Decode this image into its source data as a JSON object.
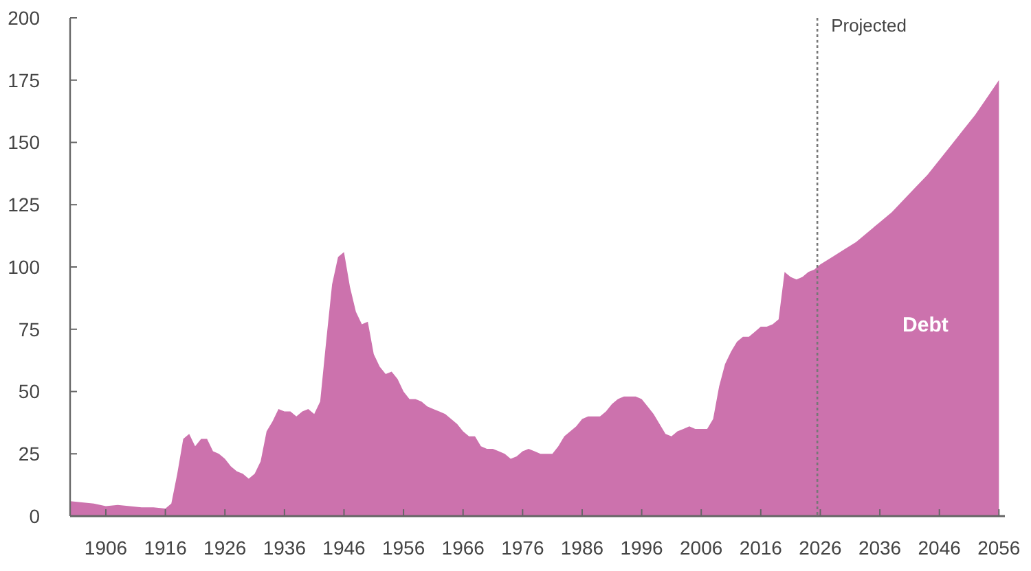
{
  "chart_data": {
    "type": "area",
    "xlim": [
      1900,
      2057
    ],
    "ylim": [
      0,
      200
    ],
    "xticks": [
      1906,
      1916,
      1926,
      1936,
      1946,
      1956,
      1966,
      1976,
      1986,
      1996,
      2006,
      2016,
      2026,
      2036,
      2046,
      2056
    ],
    "yticks": [
      0,
      25,
      50,
      75,
      100,
      125,
      150,
      175,
      200
    ],
    "grid": false,
    "ref_lines": [
      {
        "axis": "x",
        "value": 2025.5,
        "label": "Projected",
        "color": "#777777",
        "line_style": "dotted"
      }
    ],
    "series": [
      {
        "name": "Debt",
        "color": "#cc72ad",
        "x": [
          1900,
          1902,
          1904,
          1906,
          1908,
          1910,
          1912,
          1914,
          1916,
          1917,
          1918,
          1919,
          1920,
          1921,
          1922,
          1923,
          1924,
          1925,
          1926,
          1927,
          1928,
          1929,
          1930,
          1931,
          1932,
          1933,
          1934,
          1935,
          1936,
          1937,
          1938,
          1939,
          1940,
          1941,
          1942,
          1943,
          1944,
          1945,
          1946,
          1947,
          1948,
          1949,
          1950,
          1951,
          1952,
          1953,
          1954,
          1955,
          1956,
          1957,
          1958,
          1959,
          1960,
          1961,
          1962,
          1963,
          1964,
          1965,
          1966,
          1967,
          1968,
          1969,
          1970,
          1971,
          1972,
          1973,
          1974,
          1975,
          1976,
          1977,
          1978,
          1979,
          1980,
          1981,
          1982,
          1983,
          1984,
          1985,
          1986,
          1987,
          1988,
          1989,
          1990,
          1991,
          1992,
          1993,
          1994,
          1995,
          1996,
          1997,
          1998,
          1999,
          2000,
          2001,
          2002,
          2003,
          2004,
          2005,
          2006,
          2007,
          2008,
          2009,
          2010,
          2011,
          2012,
          2013,
          2014,
          2015,
          2016,
          2017,
          2018,
          2019,
          2020,
          2021,
          2022,
          2023,
          2024,
          2025,
          2026,
          2028,
          2030,
          2032,
          2034,
          2036,
          2038,
          2040,
          2042,
          2044,
          2046,
          2048,
          2050,
          2052,
          2054,
          2056
        ],
        "values": [
          6,
          5.5,
          5,
          4,
          4.5,
          4,
          3.5,
          3.5,
          3,
          5,
          17,
          31,
          33,
          28,
          31,
          31,
          26,
          25,
          23,
          20,
          18,
          17,
          15,
          17,
          22,
          34,
          38,
          43,
          42,
          42,
          40,
          42,
          43,
          41,
          46,
          70,
          93,
          104,
          106,
          92,
          82,
          77,
          78,
          65,
          60,
          57,
          58,
          55,
          50,
          47,
          47,
          46,
          44,
          43,
          42,
          41,
          39,
          37,
          34,
          32,
          32,
          28,
          27,
          27,
          26,
          25,
          23,
          24,
          26,
          27,
          26,
          25,
          25,
          25,
          28,
          32,
          34,
          36,
          39,
          40,
          40,
          40,
          42,
          45,
          47,
          48,
          48,
          48,
          47,
          44,
          41,
          37,
          33,
          32,
          34,
          35,
          36,
          35,
          35,
          35,
          39,
          52,
          61,
          66,
          70,
          72,
          72,
          74,
          76,
          76,
          77,
          79,
          98,
          96,
          95,
          96,
          98,
          99,
          101,
          104,
          107,
          110,
          114,
          118,
          122,
          127,
          132,
          137,
          143,
          149,
          155,
          161,
          168,
          175
        ]
      }
    ]
  }
}
